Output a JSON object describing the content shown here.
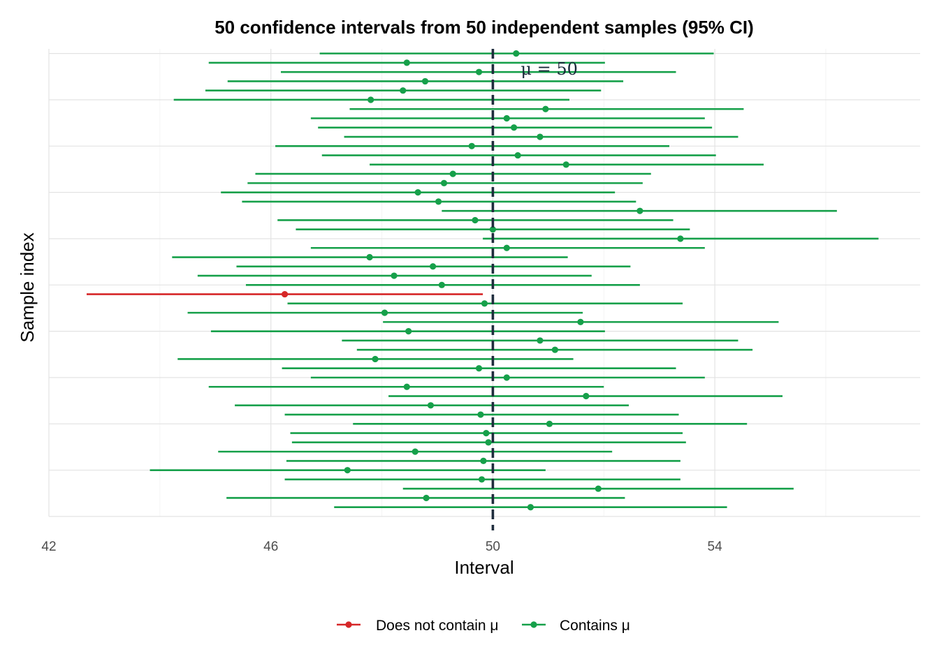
{
  "chart_data": {
    "type": "scatter",
    "title": "50 confidence intervals from 50 independent samples (95% CI)",
    "xlabel": "Interval",
    "ylabel": "Sample index",
    "xlim": [
      42,
      57.7
    ],
    "ylim": [
      0,
      50.5
    ],
    "x_ticks": [
      42,
      46,
      50,
      54
    ],
    "x_tick_labels": [
      "42",
      "46",
      "50",
      "54"
    ],
    "grid": true,
    "reference_line": {
      "x": 50,
      "label": "μ = 50",
      "color": "#1f2d3d",
      "style": "dashed"
    },
    "legend": {
      "position": "bottom",
      "entries": [
        {
          "label": "Does not contain μ",
          "color": "#d62728"
        },
        {
          "label": "Contains μ",
          "color": "#16a04a"
        }
      ]
    },
    "colors": {
      "contains": "#16a04a",
      "not_contains": "#d62728"
    },
    "intervals": [
      {
        "index": 1,
        "lower": 47.14,
        "estimate": 50.68,
        "upper": 54.22,
        "contains_mu": true
      },
      {
        "index": 2,
        "lower": 45.2,
        "estimate": 48.8,
        "upper": 52.38,
        "contains_mu": true
      },
      {
        "index": 3,
        "lower": 48.38,
        "estimate": 51.9,
        "upper": 55.42,
        "contains_mu": true
      },
      {
        "index": 4,
        "lower": 46.25,
        "estimate": 49.8,
        "upper": 53.38,
        "contains_mu": true
      },
      {
        "index": 5,
        "lower": 43.82,
        "estimate": 47.38,
        "upper": 50.95,
        "contains_mu": true
      },
      {
        "index": 6,
        "lower": 46.28,
        "estimate": 49.83,
        "upper": 53.38,
        "contains_mu": true
      },
      {
        "index": 7,
        "lower": 45.05,
        "estimate": 48.6,
        "upper": 52.15,
        "contains_mu": true
      },
      {
        "index": 8,
        "lower": 46.38,
        "estimate": 49.92,
        "upper": 53.48,
        "contains_mu": true
      },
      {
        "index": 9,
        "lower": 46.35,
        "estimate": 49.88,
        "upper": 53.42,
        "contains_mu": true
      },
      {
        "index": 10,
        "lower": 47.48,
        "estimate": 51.02,
        "upper": 54.58,
        "contains_mu": true
      },
      {
        "index": 11,
        "lower": 46.25,
        "estimate": 49.78,
        "upper": 53.35,
        "contains_mu": true
      },
      {
        "index": 12,
        "lower": 45.35,
        "estimate": 48.88,
        "upper": 52.45,
        "contains_mu": true
      },
      {
        "index": 13,
        "lower": 48.12,
        "estimate": 51.68,
        "upper": 55.22,
        "contains_mu": true
      },
      {
        "index": 14,
        "lower": 44.88,
        "estimate": 48.45,
        "upper": 52.0,
        "contains_mu": true
      },
      {
        "index": 15,
        "lower": 46.72,
        "estimate": 50.25,
        "upper": 53.82,
        "contains_mu": true
      },
      {
        "index": 16,
        "lower": 46.2,
        "estimate": 49.75,
        "upper": 53.3,
        "contains_mu": true
      },
      {
        "index": 17,
        "lower": 44.32,
        "estimate": 47.88,
        "upper": 51.45,
        "contains_mu": true
      },
      {
        "index": 18,
        "lower": 47.55,
        "estimate": 51.12,
        "upper": 54.68,
        "contains_mu": true
      },
      {
        "index": 19,
        "lower": 47.28,
        "estimate": 50.85,
        "upper": 54.42,
        "contains_mu": true
      },
      {
        "index": 20,
        "lower": 44.92,
        "estimate": 48.48,
        "upper": 52.02,
        "contains_mu": true
      },
      {
        "index": 21,
        "lower": 48.02,
        "estimate": 51.58,
        "upper": 55.15,
        "contains_mu": true
      },
      {
        "index": 22,
        "lower": 44.5,
        "estimate": 48.05,
        "upper": 51.62,
        "contains_mu": true
      },
      {
        "index": 23,
        "lower": 46.3,
        "estimate": 49.85,
        "upper": 53.42,
        "contains_mu": true
      },
      {
        "index": 24,
        "lower": 42.68,
        "estimate": 46.25,
        "upper": 49.82,
        "contains_mu": false
      },
      {
        "index": 25,
        "lower": 45.55,
        "estimate": 49.08,
        "upper": 52.65,
        "contains_mu": true
      },
      {
        "index": 26,
        "lower": 44.68,
        "estimate": 48.22,
        "upper": 51.78,
        "contains_mu": true
      },
      {
        "index": 27,
        "lower": 45.38,
        "estimate": 48.92,
        "upper": 52.48,
        "contains_mu": true
      },
      {
        "index": 28,
        "lower": 44.22,
        "estimate": 47.78,
        "upper": 51.35,
        "contains_mu": true
      },
      {
        "index": 29,
        "lower": 46.72,
        "estimate": 50.25,
        "upper": 53.82,
        "contains_mu": true
      },
      {
        "index": 30,
        "lower": 49.82,
        "estimate": 53.38,
        "upper": 56.95,
        "contains_mu": true
      },
      {
        "index": 31,
        "lower": 46.45,
        "estimate": 50.0,
        "upper": 53.55,
        "contains_mu": true
      },
      {
        "index": 32,
        "lower": 46.12,
        "estimate": 49.68,
        "upper": 53.25,
        "contains_mu": true
      },
      {
        "index": 33,
        "lower": 49.08,
        "estimate": 52.65,
        "upper": 56.2,
        "contains_mu": true
      },
      {
        "index": 34,
        "lower": 45.48,
        "estimate": 49.02,
        "upper": 52.58,
        "contains_mu": true
      },
      {
        "index": 35,
        "lower": 45.1,
        "estimate": 48.65,
        "upper": 52.2,
        "contains_mu": true
      },
      {
        "index": 36,
        "lower": 45.58,
        "estimate": 49.12,
        "upper": 52.7,
        "contains_mu": true
      },
      {
        "index": 37,
        "lower": 45.72,
        "estimate": 49.28,
        "upper": 52.85,
        "contains_mu": true
      },
      {
        "index": 38,
        "lower": 47.78,
        "estimate": 51.32,
        "upper": 54.88,
        "contains_mu": true
      },
      {
        "index": 39,
        "lower": 46.92,
        "estimate": 50.45,
        "upper": 54.02,
        "contains_mu": true
      },
      {
        "index": 40,
        "lower": 46.08,
        "estimate": 49.62,
        "upper": 53.18,
        "contains_mu": true
      },
      {
        "index": 41,
        "lower": 47.32,
        "estimate": 50.85,
        "upper": 54.42,
        "contains_mu": true
      },
      {
        "index": 42,
        "lower": 46.85,
        "estimate": 50.38,
        "upper": 53.95,
        "contains_mu": true
      },
      {
        "index": 43,
        "lower": 46.72,
        "estimate": 50.25,
        "upper": 53.82,
        "contains_mu": true
      },
      {
        "index": 44,
        "lower": 47.42,
        "estimate": 50.95,
        "upper": 54.52,
        "contains_mu": true
      },
      {
        "index": 45,
        "lower": 44.25,
        "estimate": 47.8,
        "upper": 51.38,
        "contains_mu": true
      },
      {
        "index": 46,
        "lower": 44.82,
        "estimate": 48.38,
        "upper": 51.95,
        "contains_mu": true
      },
      {
        "index": 47,
        "lower": 45.22,
        "estimate": 48.78,
        "upper": 52.35,
        "contains_mu": true
      },
      {
        "index": 48,
        "lower": 46.18,
        "estimate": 49.75,
        "upper": 53.3,
        "contains_mu": true
      },
      {
        "index": 49,
        "lower": 44.88,
        "estimate": 48.45,
        "upper": 52.02,
        "contains_mu": true
      },
      {
        "index": 50,
        "lower": 46.88,
        "estimate": 50.42,
        "upper": 53.98,
        "contains_mu": true
      }
    ]
  }
}
